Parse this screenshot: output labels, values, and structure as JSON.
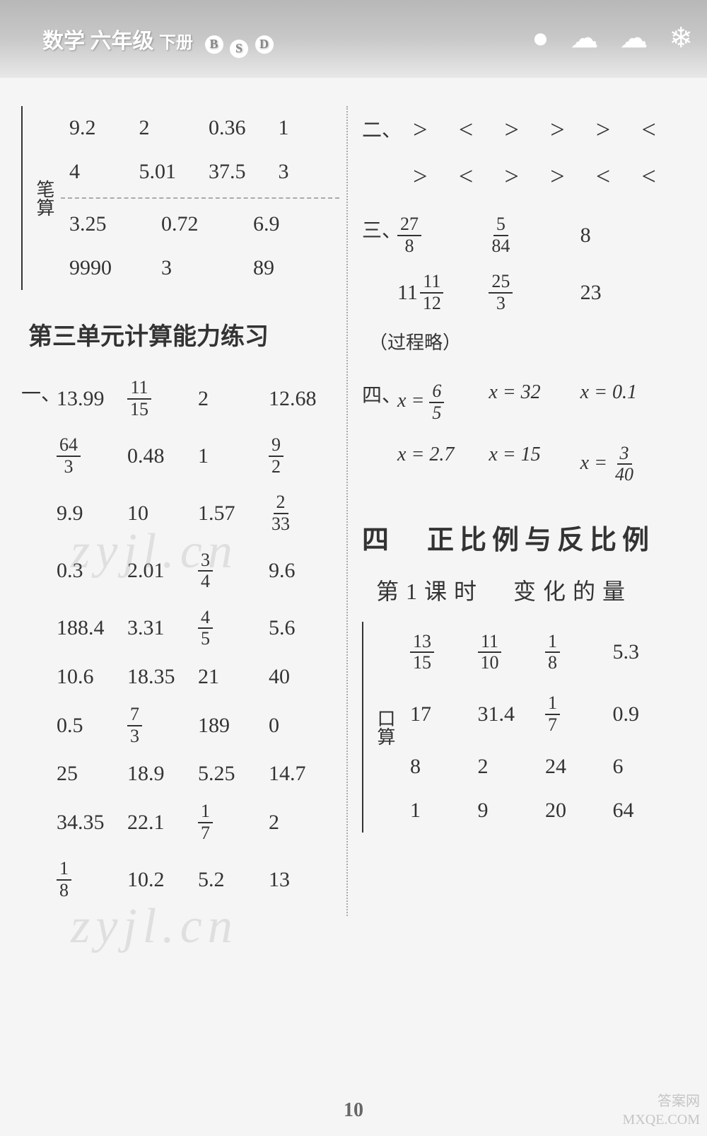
{
  "header": {
    "subject": "数学",
    "grade": "六年级",
    "volume": "下册",
    "bsd": [
      "B",
      "S",
      "D"
    ]
  },
  "left": {
    "bisuan_label": "笔算",
    "top_rows": [
      [
        "9.2",
        "2",
        "0.36",
        "1"
      ],
      [
        "4",
        "5.01",
        "37.5",
        "3"
      ]
    ],
    "bottom_rows": [
      [
        "3.25",
        "0.72",
        "6.9"
      ],
      [
        "9990",
        "3",
        "89"
      ]
    ],
    "unit3_title": "第三单元计算能力练习",
    "q1_label": "一、",
    "q1_rows": [
      [
        "13.99",
        {
          "frac": [
            11,
            15
          ]
        },
        "2",
        "12.68"
      ],
      [
        {
          "frac": [
            64,
            3
          ]
        },
        "0.48",
        "1",
        {
          "frac": [
            9,
            2
          ]
        }
      ],
      [
        "9.9",
        "10",
        "1.57",
        {
          "frac": [
            2,
            33
          ]
        }
      ],
      [
        "0.3",
        "2.01",
        {
          "frac": [
            3,
            4
          ]
        },
        "9.6"
      ],
      [
        "188.4",
        "3.31",
        {
          "frac": [
            4,
            5
          ]
        },
        "5.6"
      ],
      [
        "10.6",
        "18.35",
        "21",
        "40"
      ],
      [
        "0.5",
        {
          "frac": [
            7,
            3
          ]
        },
        "189",
        "0"
      ],
      [
        "25",
        "18.9",
        "5.25",
        "14.7"
      ],
      [
        "34.35",
        "22.1",
        {
          "frac": [
            1,
            7
          ]
        },
        "2"
      ],
      [
        {
          "frac": [
            1,
            8
          ]
        },
        "10.2",
        "5.2",
        "13"
      ]
    ]
  },
  "right": {
    "q2_label": "二、",
    "cmp_rows": [
      [
        ">",
        "<",
        ">",
        ">",
        ">",
        "<"
      ],
      [
        ">",
        "<",
        ">",
        ">",
        "<",
        "<"
      ]
    ],
    "q3_label": "三、",
    "q3_rows": [
      [
        {
          "frac": [
            27,
            8
          ]
        },
        {
          "frac": [
            5,
            84
          ]
        },
        "8"
      ],
      [
        {
          "mixed": [
            11,
            11,
            12
          ]
        },
        {
          "frac": [
            25,
            3
          ]
        },
        "23"
      ]
    ],
    "q3_note": "（过程略）",
    "q4_label": "四、",
    "eq_rows": [
      [
        {
          "var": "x",
          "val": {
            "frac": [
              6,
              5
            ]
          }
        },
        {
          "var": "x",
          "val": "32"
        },
        {
          "var": "x",
          "val": "0.1"
        }
      ],
      [
        {
          "var": "x",
          "val": "2.7"
        },
        {
          "var": "x",
          "val": "15"
        },
        {
          "var": "x",
          "val": {
            "frac": [
              3,
              40
            ]
          }
        }
      ]
    ],
    "unit4_title": "四　正比例与反比例",
    "lesson_title": "第1课时　变化的量",
    "kousuan_label": "口算",
    "kousuan_rows": [
      [
        {
          "frac": [
            13,
            15
          ]
        },
        {
          "frac": [
            11,
            10
          ]
        },
        {
          "frac": [
            1,
            8
          ]
        },
        "5.3"
      ],
      [
        "17",
        "31.4",
        {
          "frac": [
            1,
            7
          ]
        },
        "0.9"
      ],
      [
        "8",
        "2",
        "24",
        "6"
      ],
      [
        "1",
        "9",
        "20",
        "64"
      ]
    ]
  },
  "page_number": "10",
  "watermarks": {
    "wm": "zyjl.cn",
    "corner1": "答案网",
    "corner2": "MXQE.COM"
  }
}
